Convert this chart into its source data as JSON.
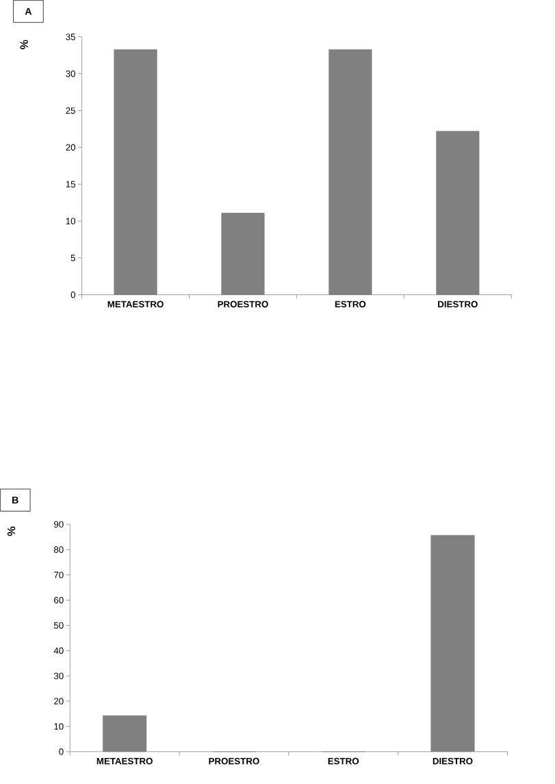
{
  "chart_data": [
    {
      "type": "bar",
      "title": "A",
      "ylabel": "%",
      "categories": [
        "METAESTRO",
        "PROESTRO",
        "ESTRO",
        "DIESTRO"
      ],
      "values": [
        33.3,
        11.1,
        33.3,
        22.2
      ],
      "color": "#808080",
      "ylim": [
        0,
        35
      ],
      "yticks": [
        0,
        5,
        10,
        15,
        20,
        25,
        30,
        35
      ],
      "grid": false
    },
    {
      "type": "bar",
      "title": "B",
      "ylabel": "%",
      "categories": [
        "METAESTRO",
        "PROESTRO",
        "ESTRO",
        "DIESTRO"
      ],
      "values": [
        14.3,
        0,
        0,
        85.7
      ],
      "color": "#808080",
      "ylim": [
        0,
        90
      ],
      "yticks": [
        0,
        10,
        20,
        30,
        40,
        50,
        60,
        70,
        80,
        90
      ],
      "grid": false
    }
  ]
}
